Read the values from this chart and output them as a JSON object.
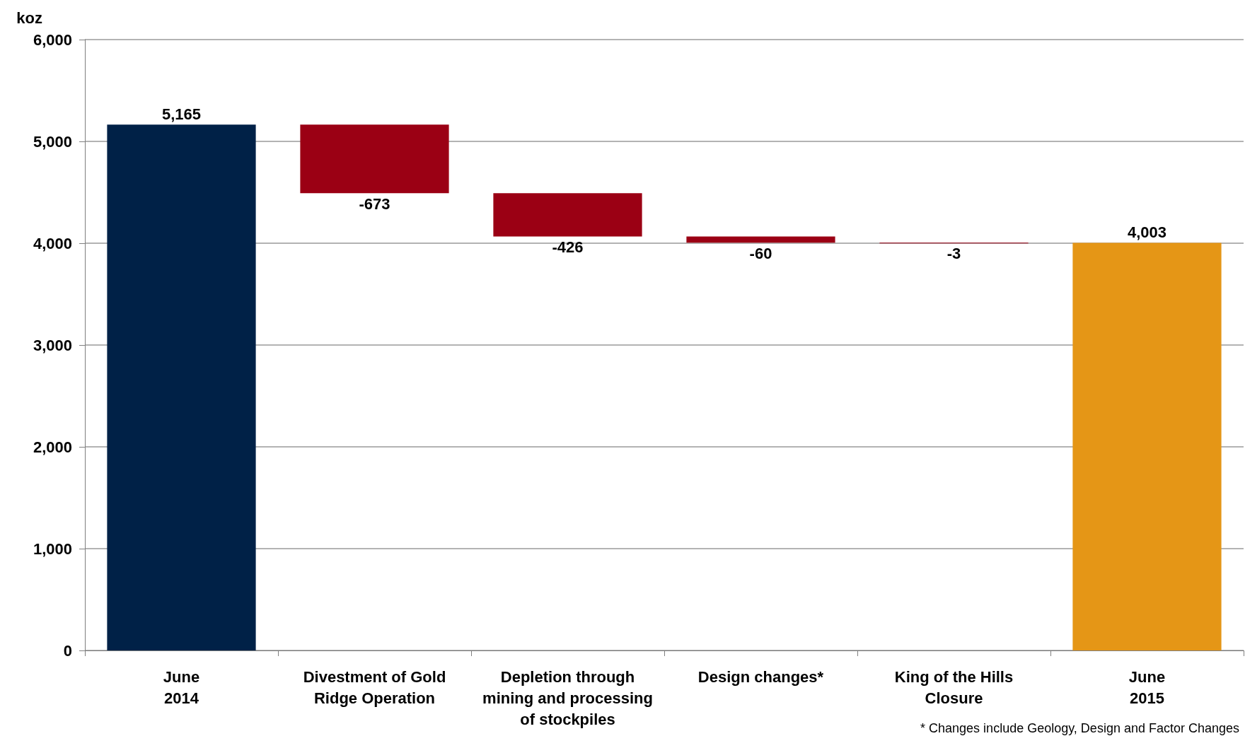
{
  "chart_data": {
    "type": "bar",
    "ylabel": "koz",
    "categories": [
      "June\n2014",
      "Divestment of Gold\nRidge Operation",
      "Depletion through\nmining and processing\nof stockpiles",
      "Design changes*",
      "King of the Hills\nClosure",
      "June\n2015"
    ],
    "values": [
      5165,
      -673,
      -426,
      -60,
      -3,
      4003
    ],
    "base": [
      0,
      5165,
      4492,
      4066,
      4006,
      0
    ],
    "colors": [
      "#002147",
      "#9b0014",
      "#9b0014",
      "#9b0014",
      "#9b0014",
      "#e59616"
    ],
    "value_labels": [
      "5,165",
      "-673",
      "-426",
      "-60",
      "-3",
      "4,003"
    ],
    "ylim": [
      0,
      6000
    ],
    "yticks": [
      0,
      {
        "value": 1000,
        "label": "1,000"
      },
      {
        "value": 2000,
        "label": "2,000"
      },
      {
        "value": 3000,
        "label": "3,000"
      },
      {
        "value": 4000,
        "label": "4,000"
      },
      {
        "value": 5000,
        "label": "5,000"
      },
      {
        "value": 6000,
        "label": "6,000"
      }
    ],
    "grid": "y",
    "annotations": [
      "* Changes include Geology, Design and Factor Changes"
    ]
  }
}
